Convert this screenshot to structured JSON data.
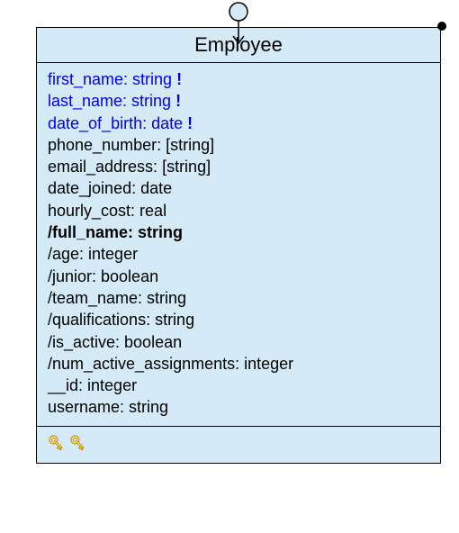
{
  "className": "Employee",
  "colors": {
    "box_fill": "#d4ebf7",
    "border": "#000000",
    "emphasis": "#0000ee",
    "text": "#000000"
  },
  "fontsize": {
    "title": 22,
    "attr": 18
  },
  "attributes": [
    {
      "name": "first_name",
      "type": "string",
      "emphasis": true,
      "required": true,
      "derived": false,
      "bold": false
    },
    {
      "name": "last_name",
      "type": "string",
      "emphasis": true,
      "required": true,
      "derived": false,
      "bold": false
    },
    {
      "name": "date_of_birth",
      "type": "date",
      "emphasis": true,
      "required": true,
      "derived": false,
      "bold": false
    },
    {
      "name": "phone_number",
      "type": "[string]",
      "emphasis": false,
      "required": false,
      "derived": false,
      "bold": false
    },
    {
      "name": "email_address",
      "type": "[string]",
      "emphasis": false,
      "required": false,
      "derived": false,
      "bold": false
    },
    {
      "name": "date_joined",
      "type": "date",
      "emphasis": false,
      "required": false,
      "derived": false,
      "bold": false
    },
    {
      "name": "hourly_cost",
      "type": "real",
      "emphasis": false,
      "required": false,
      "derived": false,
      "bold": false
    },
    {
      "name": "full_name",
      "type": "string",
      "emphasis": false,
      "required": false,
      "derived": true,
      "bold": true
    },
    {
      "name": "age",
      "type": "integer",
      "emphasis": false,
      "required": false,
      "derived": true,
      "bold": false
    },
    {
      "name": "junior",
      "type": "boolean",
      "emphasis": false,
      "required": false,
      "derived": true,
      "bold": false
    },
    {
      "name": "team_name",
      "type": "string",
      "emphasis": false,
      "required": false,
      "derived": true,
      "bold": false
    },
    {
      "name": "qualifications",
      "type": "string",
      "emphasis": false,
      "required": false,
      "derived": true,
      "bold": false
    },
    {
      "name": "is_active",
      "type": "boolean",
      "emphasis": false,
      "required": false,
      "derived": true,
      "bold": false
    },
    {
      "name": "num_active_assignments",
      "type": "integer",
      "emphasis": false,
      "required": false,
      "derived": true,
      "bold": false
    },
    {
      "name": "__id",
      "type": "integer",
      "emphasis": false,
      "required": false,
      "derived": false,
      "bold": false
    },
    {
      "name": "username",
      "type": "string",
      "emphasis": false,
      "required": false,
      "derived": false,
      "bold": false
    }
  ],
  "keyCount": 2
}
